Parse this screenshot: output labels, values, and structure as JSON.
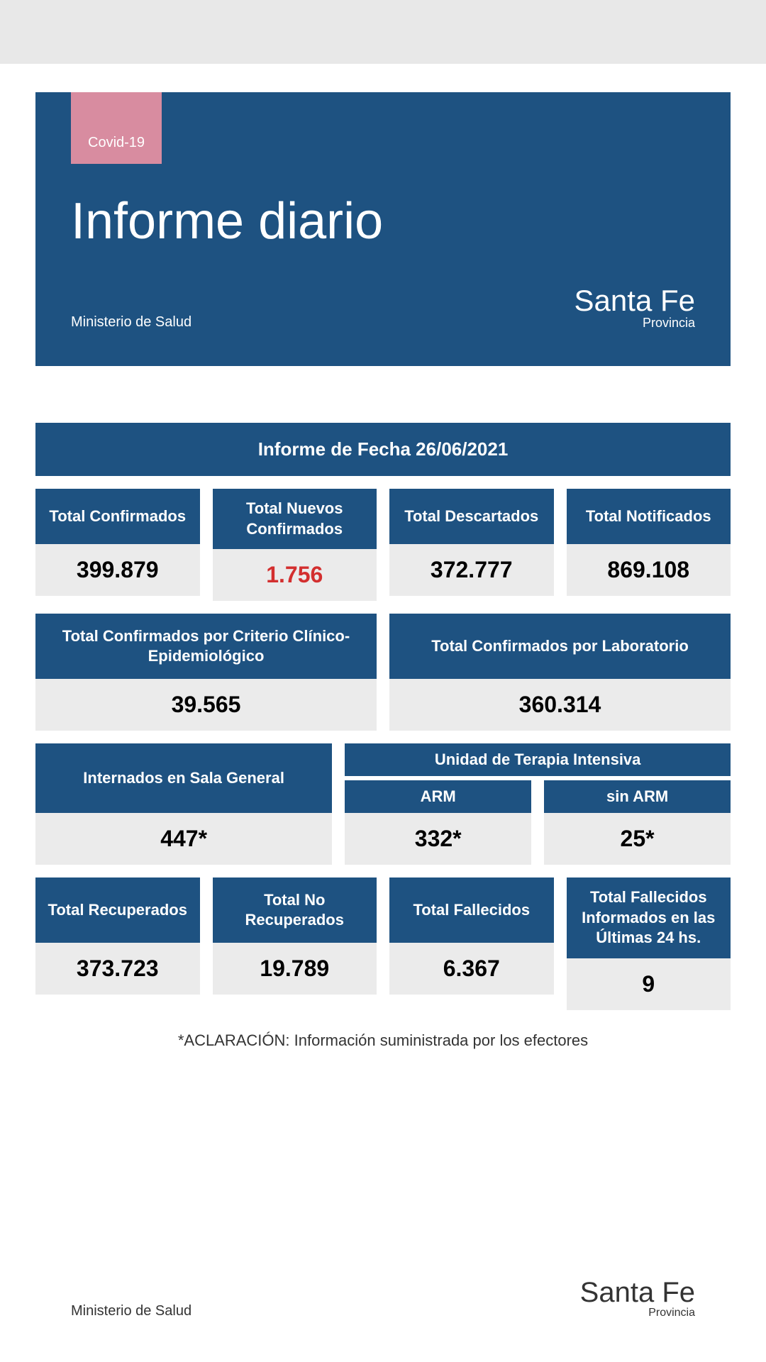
{
  "header": {
    "badge": "Covid-19",
    "title": "Informe diario",
    "ministry": "Ministerio de Salud",
    "logo_main": "Santa Fe",
    "logo_sub": "Provincia"
  },
  "date_bar": "Informe de Fecha 26/06/2021",
  "colors": {
    "primary": "#1e5281",
    "badge": "#d88ca0",
    "value_bg": "#ebebeb",
    "highlight": "#d32f2f"
  },
  "row1": {
    "confirmados": {
      "label": "Total Confirmados",
      "value": "399.879"
    },
    "nuevos": {
      "label": "Total Nuevos Confirmados",
      "value": "1.756"
    },
    "descartados": {
      "label": "Total Descartados",
      "value": "372.777"
    },
    "notificados": {
      "label": "Total Notificados",
      "value": "869.108"
    }
  },
  "row2": {
    "clinico": {
      "label": "Total Confirmados por Criterio Clínico-Epidemiológico",
      "value": "39.565"
    },
    "lab": {
      "label": "Total Confirmados por Laboratorio",
      "value": "360.314"
    }
  },
  "row3": {
    "internados": {
      "label": "Internados en Sala General",
      "value": "447*"
    },
    "uti_label": "Unidad de Terapia Intensiva",
    "arm": {
      "label": "ARM",
      "value": "332*"
    },
    "sin_arm": {
      "label": "sin ARM",
      "value": "25*"
    }
  },
  "row4": {
    "recuperados": {
      "label": "Total Recuperados",
      "value": "373.723"
    },
    "no_recuperados": {
      "label": "Total No Recuperados",
      "value": "19.789"
    },
    "fallecidos": {
      "label": "Total Fallecidos",
      "value": "6.367"
    },
    "fallecidos_24": {
      "label": "Total Fallecidos Informados en las Últimas 24 hs.",
      "value": "9"
    }
  },
  "footnote": "*ACLARACIÓN: Información suministrada por los efectores",
  "footer": {
    "ministry": "Ministerio de Salud",
    "logo_main": "Santa Fe",
    "logo_sub": "Provincia"
  }
}
